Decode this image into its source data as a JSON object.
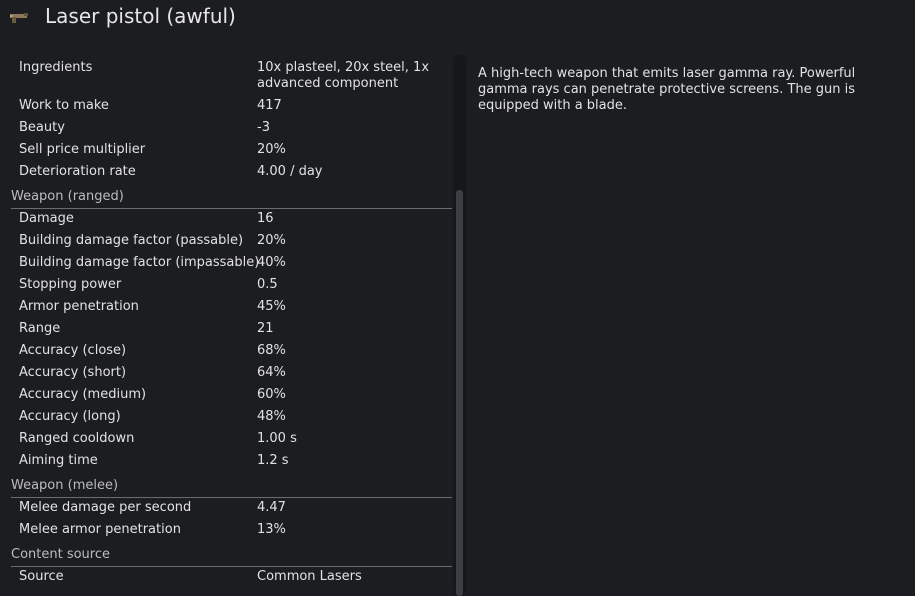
{
  "header": {
    "icon": "laser-pistol-icon",
    "title": "Laser pistol (awful)"
  },
  "stats": {
    "general": [
      {
        "label": "Ingredients",
        "value": "10x plasteel, 20x steel, 1x advanced component"
      },
      {
        "label": "Work to make",
        "value": "417"
      },
      {
        "label": "Beauty",
        "value": "-3"
      },
      {
        "label": "Sell price multiplier",
        "value": "20%"
      },
      {
        "label": "Deterioration rate",
        "value": "4.00 / day"
      }
    ],
    "ranged": {
      "title": "Weapon (ranged)",
      "rows": [
        {
          "label": "Damage",
          "value": "16"
        },
        {
          "label": "Building damage factor (passable)",
          "value": "20%"
        },
        {
          "label": "Building damage factor (impassable)",
          "value": "40%"
        },
        {
          "label": "Stopping power",
          "value": "0.5"
        },
        {
          "label": "Armor penetration",
          "value": "45%"
        },
        {
          "label": "Range",
          "value": "21"
        },
        {
          "label": "Accuracy (close)",
          "value": "68%"
        },
        {
          "label": "Accuracy (short)",
          "value": "64%"
        },
        {
          "label": "Accuracy (medium)",
          "value": "60%"
        },
        {
          "label": "Accuracy (long)",
          "value": "48%"
        },
        {
          "label": "Ranged cooldown",
          "value": "1.00 s"
        },
        {
          "label": "Aiming time",
          "value": "1.2 s"
        }
      ]
    },
    "melee": {
      "title": "Weapon (melee)",
      "rows": [
        {
          "label": "Melee damage per second",
          "value": "4.47"
        },
        {
          "label": "Melee armor penetration",
          "value": "13%"
        }
      ]
    },
    "content_source": {
      "title": "Content source",
      "rows": [
        {
          "label": "Source",
          "value": "Common Lasers"
        }
      ]
    }
  },
  "description": "A high-tech weapon that emits laser gamma ray. Powerful gamma rays can penetrate protective screens. The gun is equipped with a blade."
}
